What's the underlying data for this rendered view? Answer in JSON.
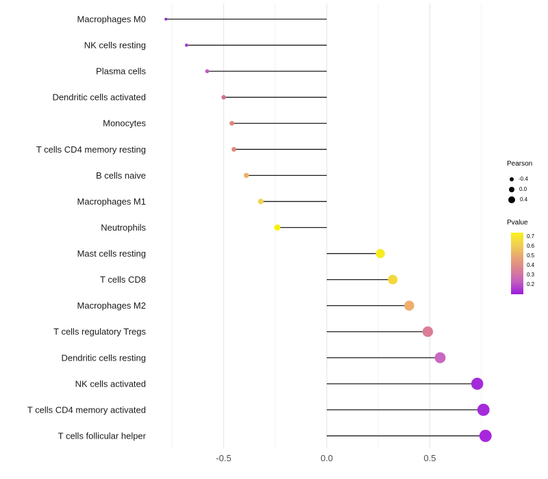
{
  "chart_data": {
    "type": "lollipop",
    "title": "",
    "xlabel": "",
    "ylabel": "",
    "xlim": [
      -0.84,
      0.8
    ],
    "grid": "vertical-only",
    "x_ticks": [
      {
        "value": -0.5,
        "label": "-0.5"
      },
      {
        "value": 0.0,
        "label": "0.0"
      },
      {
        "value": 0.5,
        "label": "0.5"
      }
    ],
    "x_minor_ticks": [
      -0.75,
      -0.25,
      0.25,
      0.75
    ],
    "points": [
      {
        "label": "Macrophages M0",
        "pearson": -0.78,
        "color": "#8B27C9"
      },
      {
        "label": "NK cells resting",
        "pearson": -0.68,
        "color": "#A23DD3"
      },
      {
        "label": "Plasma cells",
        "pearson": -0.58,
        "color": "#C05BC6"
      },
      {
        "label": "Dendritic cells activated",
        "pearson": -0.5,
        "color": "#D1718F"
      },
      {
        "label": "Monocytes",
        "pearson": -0.46,
        "color": "#DB8878"
      },
      {
        "label": "T cells CD4 memory resting",
        "pearson": -0.45,
        "color": "#DB8878"
      },
      {
        "label": "B cells naive",
        "pearson": -0.39,
        "color": "#ECB16A"
      },
      {
        "label": "Macrophages M1",
        "pearson": -0.32,
        "color": "#F0D24E"
      },
      {
        "label": "Neutrophils",
        "pearson": -0.24,
        "color": "#F8F000"
      },
      {
        "label": "Mast cells resting",
        "pearson": 0.26,
        "color": "#F7EC1F"
      },
      {
        "label": "T cells CD8",
        "pearson": 0.32,
        "color": "#F2D83B"
      },
      {
        "label": "Macrophages M2",
        "pearson": 0.4,
        "color": "#EFAE6E"
      },
      {
        "label": "T cells regulatory  Tregs",
        "pearson": 0.49,
        "color": "#DB7D96"
      },
      {
        "label": "Dendritic cells resting",
        "pearson": 0.55,
        "color": "#C968C1"
      },
      {
        "label": "NK cells activated",
        "pearson": 0.73,
        "color": "#A32BDA"
      },
      {
        "label": "T cells CD4 memory activated",
        "pearson": 0.76,
        "color": "#A52BDB"
      },
      {
        "label": "T cells follicular helper",
        "pearson": 0.77,
        "color": "#A826DC"
      }
    ],
    "legend_size": {
      "title": "Pearson",
      "entries": [
        {
          "label": "-0.4"
        },
        {
          "label": "0.0"
        },
        {
          "label": "0.4"
        }
      ]
    },
    "legend_color": {
      "title": "Pvalue",
      "ticks": [
        "0.7",
        "0.6",
        "0.5",
        "0.4",
        "0.3",
        "0.2"
      ],
      "gradient_top_to_bottom": [
        "#F9F21A",
        "#F0CF52",
        "#E8A573",
        "#DB8193",
        "#C25DC0",
        "#9B1BDE"
      ]
    },
    "colors": {
      "stem_line": "#1A1A1A",
      "major_gridline": "#E7E7E7",
      "minor_gridline": "#F2F2F2",
      "axis_text": "#4D4D4D",
      "category_text": "#1A1A1A"
    }
  }
}
